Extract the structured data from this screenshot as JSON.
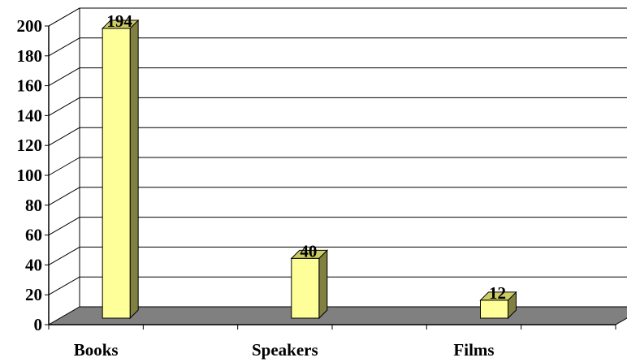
{
  "chart_data": {
    "type": "bar",
    "style": "3d-column",
    "categories": [
      "Books",
      "Speakers",
      "Films"
    ],
    "values": [
      194,
      40,
      12
    ],
    "data_labels": [
      "194",
      "40",
      "12"
    ],
    "title": "",
    "xlabel": "",
    "ylabel": "",
    "ylim": [
      0,
      200
    ],
    "yticks": [
      0,
      20,
      40,
      60,
      80,
      100,
      120,
      140,
      160,
      180,
      200
    ],
    "ytick_labels": [
      "0",
      "20",
      "40",
      "60",
      "80",
      "100",
      "120",
      "140",
      "160",
      "180",
      "200"
    ],
    "grid": true,
    "legend": "none",
    "colors": {
      "bar_front": "#ffff99",
      "bar_side": "#808040",
      "bar_top": "#cccc66",
      "floor": "#808080",
      "back_wall": "#ffffff",
      "lines": "#000000"
    }
  }
}
